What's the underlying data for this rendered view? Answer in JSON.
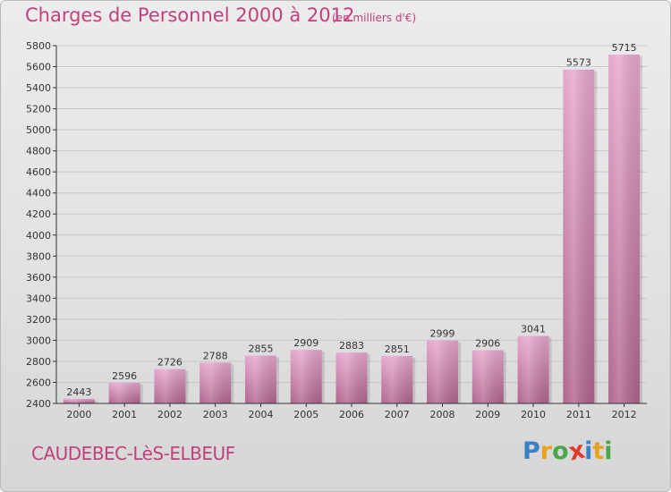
{
  "header": {
    "title": "Charges de Personnel 2000 à 2012",
    "unit_note": "(en milliers d'€)"
  },
  "footer": {
    "location": "CAUDEBEC-LèS-ELBEUF",
    "logo_letters": [
      {
        "char": "P",
        "color": "#3b7fc4"
      },
      {
        "char": "r",
        "color": "#e8a321"
      },
      {
        "char": "o",
        "color": "#4aa84a"
      },
      {
        "char": "x",
        "color": "#e23b2e"
      },
      {
        "char": "i",
        "color": "#3b7fc4"
      },
      {
        "char": "t",
        "color": "#e8a321"
      },
      {
        "char": "i",
        "color": "#4aa84a"
      }
    ]
  },
  "colors": {
    "title": "#c1417c",
    "bar_top": "#e6a7cd",
    "bar_bottom": "#b0658f",
    "grid": "#c9c9c9",
    "axis": "#333333"
  },
  "chart_data": {
    "type": "bar",
    "title": "Charges de Personnel 2000 à 2012",
    "subtitle": "(en milliers d'€)",
    "categories": [
      "2000",
      "2001",
      "2002",
      "2003",
      "2004",
      "2005",
      "2006",
      "2007",
      "2008",
      "2009",
      "2010",
      "2011",
      "2012"
    ],
    "values": [
      2443,
      2596,
      2726,
      2788,
      2855,
      2909,
      2883,
      2851,
      2999,
      2906,
      3041,
      5573,
      5715
    ],
    "ylim": [
      2400,
      5800
    ],
    "yticks": [
      2400,
      2600,
      2800,
      3000,
      3200,
      3400,
      3600,
      3800,
      4000,
      4200,
      4400,
      4600,
      4800,
      5000,
      5200,
      5400,
      5600,
      5800
    ],
    "grid": true,
    "data_labels": true
  }
}
